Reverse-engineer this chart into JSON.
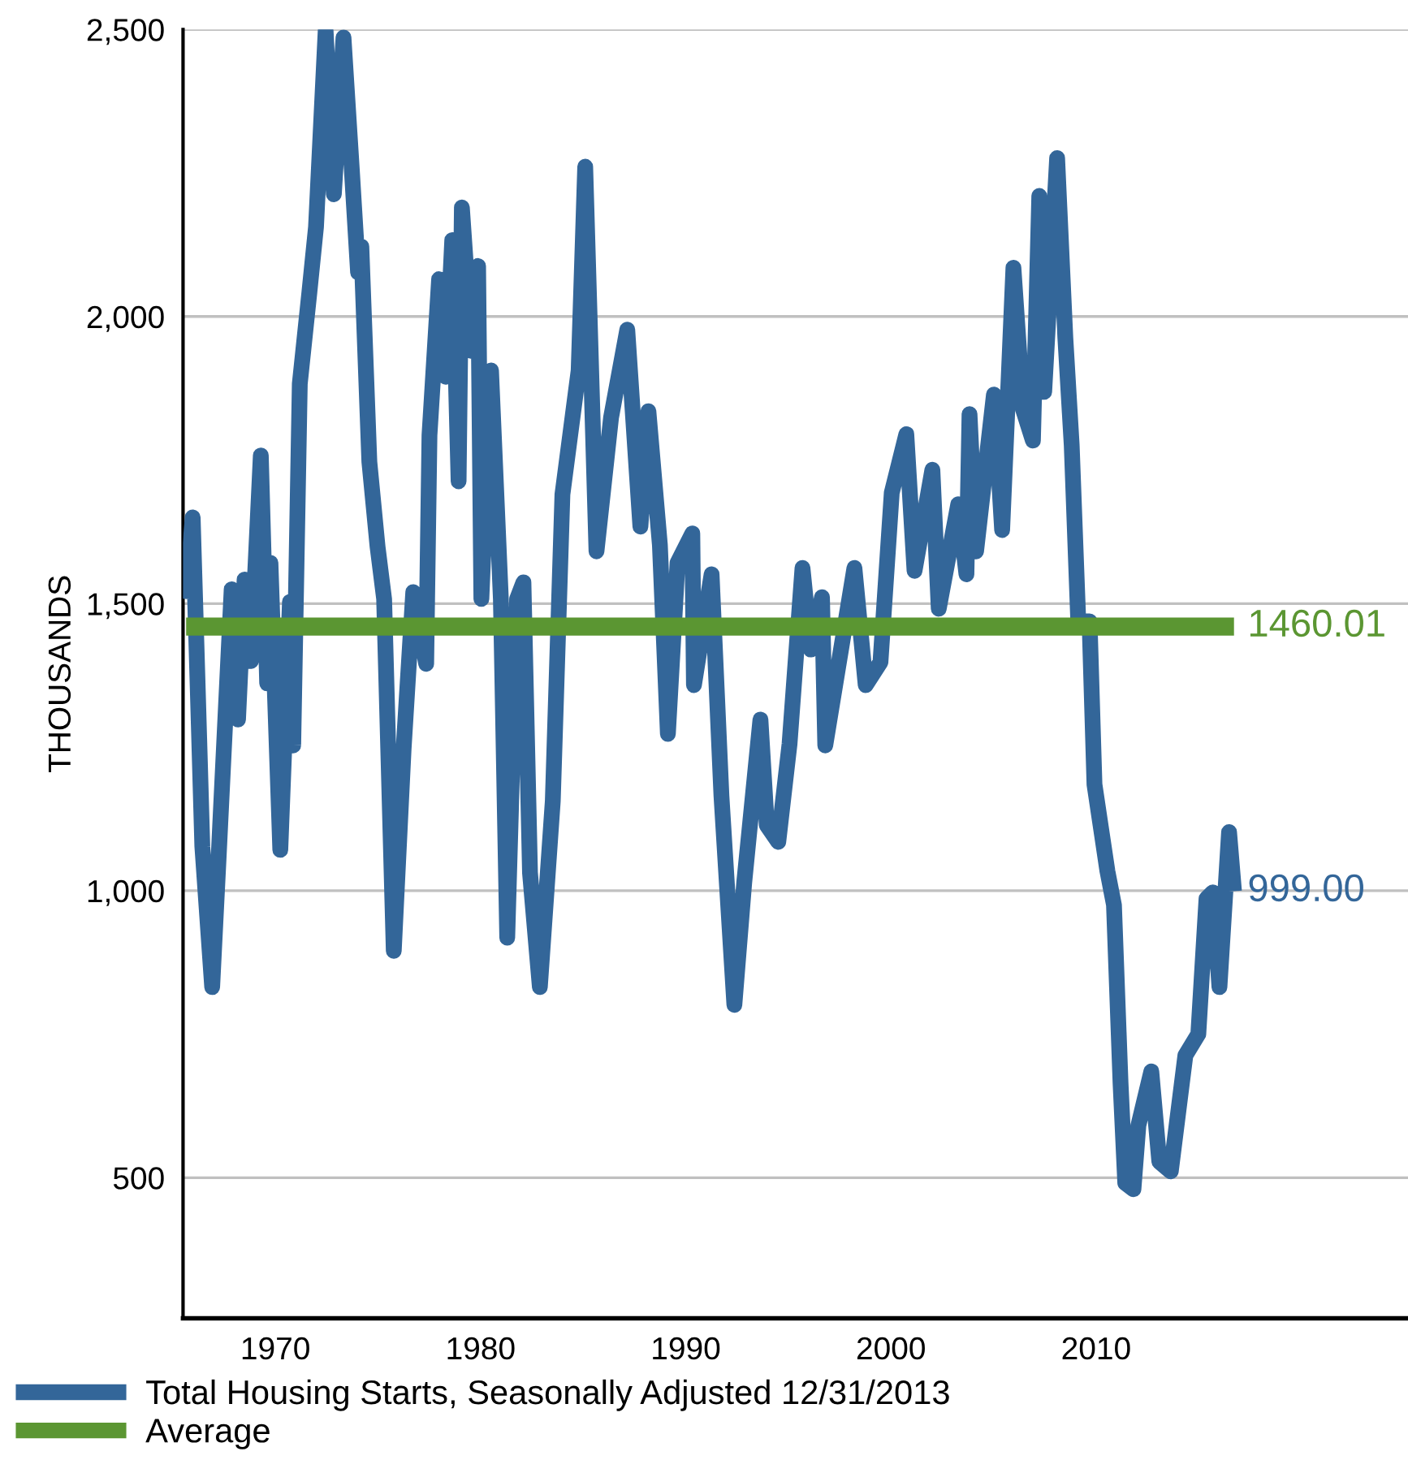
{
  "chart_data": {
    "type": "line",
    "ylabel": "THOUSANDS",
    "xlim": [
      1965.5,
      2025.2
    ],
    "xticks": [
      1970,
      1980,
      1990,
      2000,
      2010
    ],
    "ylim": [
      255,
      2500
    ],
    "yticks": [
      500,
      {
        "value": 1000,
        "label": "1,000"
      },
      {
        "value": 1500,
        "label": "1,500"
      },
      {
        "value": 2000,
        "label": "2,000"
      },
      {
        "value": 2500,
        "label": "2,500"
      }
    ],
    "grid": "y",
    "legend": "bottom left",
    "marker": "none",
    "line_style": "solid",
    "series": [
      {
        "name": "Total Housing Starts, Seasonally Adjusted 12/31/2013",
        "color": "#336699",
        "x": [
          1965.65,
          1965.97,
          1966.2,
          1966.44,
          1966.92,
          1967.23,
          1967.87,
          1968.18,
          1968.5,
          1968.81,
          1969.29,
          1969.6,
          1969.76,
          1970.24,
          1970.71,
          1970.87,
          1971.19,
          1971.66,
          1971.98,
          1972.45,
          1972.85,
          1973.32,
          1973.72,
          1974.03,
          1974.19,
          1974.58,
          1974.98,
          1975.3,
          1975.77,
          1976.25,
          1976.72,
          1977.35,
          1977.51,
          1977.98,
          1978.3,
          1978.62,
          1978.93,
          1979.09,
          1979.57,
          1979.88,
          1980.04,
          1980.51,
          1980.99,
          1981.3,
          1981.78,
          1982.09,
          1982.41,
          1982.89,
          1983.52,
          1983.99,
          1984.78,
          1985.1,
          1985.65,
          1986.36,
          1987.15,
          1987.79,
          1988.18,
          1988.74,
          1989.13,
          1989.6,
          1990.32,
          1990.4,
          1991.26,
          1991.74,
          1992.37,
          1992.85,
          1993.64,
          1993.95,
          1994.51,
          1995.06,
          1995.69,
          1996.09,
          1996.64,
          1996.8,
          1998.22,
          1998.77,
          1999.49,
          2000.04,
          2000.75,
          2001.15,
          2002.02,
          2002.33,
          2003.28,
          2003.68,
          2003.83,
          2004.15,
          2005.02,
          2005.42,
          2005.97,
          2006.44,
          2006.92,
          2007.23,
          2007.47,
          2008.1,
          2008.5,
          2008.81,
          2009.13,
          2009.68,
          2009.92,
          2010.55,
          2010.87,
          2011.19,
          2011.42,
          2011.82,
          2012.06,
          2012.69,
          2013.08,
          2013.64,
          2014.35,
          2014.98,
          2015.38,
          2015.69,
          2016.01,
          2016.48,
          2016.72
        ],
        "values": [
          1508,
          1650,
          1372,
          1077,
          832,
          1055,
          1525,
          1298,
          1542,
          1400,
          1758,
          1361,
          1571,
          1071,
          1503,
          1253,
          1883,
          2043,
          2156,
          2497,
          2213,
          2486,
          2259,
          2077,
          2122,
          1747,
          1599,
          1508,
          895,
          1247,
          1520,
          1395,
          1793,
          2065,
          1895,
          2133,
          1713,
          2190,
          1940,
          2088,
          1508,
          1906,
          1508,
          918,
          1508,
          1537,
          1031,
          832,
          1156,
          1690,
          1906,
          2261,
          1591,
          1824,
          1977,
          1634,
          1835,
          1602,
          1273,
          1571,
          1622,
          1358,
          1551,
          1165,
          801,
          1014,
          1298,
          1114,
          1085,
          1256,
          1562,
          1420,
          1511,
          1253,
          1562,
          1358,
          1398,
          1693,
          1795,
          1557,
          1733,
          1491,
          1673,
          1551,
          1830,
          1591,
          1864,
          1628,
          2085,
          1838,
          1784,
          2210,
          1869,
          2276,
          1963,
          1776,
          1469,
          1469,
          1185,
          1034,
          975,
          665,
          491,
          480,
          591,
          685,
          528,
          511,
          713,
          750,
          986,
          997,
          832,
          1102,
          999
        ],
        "value_labels": [
          null,
          null,
          null,
          null,
          null,
          null,
          null,
          null,
          null,
          null,
          null,
          null,
          null,
          null,
          null,
          null,
          null,
          null,
          null,
          null,
          null,
          null,
          null,
          null,
          null,
          null,
          null,
          null,
          null,
          null,
          null,
          null,
          null,
          null,
          null,
          null,
          null,
          null,
          null,
          null,
          null,
          null,
          null,
          null,
          null,
          null,
          null,
          null,
          null,
          null,
          null,
          null,
          null,
          null,
          null,
          null,
          null,
          null,
          null,
          null,
          null,
          null,
          null,
          null,
          null,
          null,
          null,
          null,
          null,
          null,
          null,
          null,
          null,
          null,
          null,
          null,
          null,
          null,
          null,
          null,
          null,
          null,
          null,
          null,
          null,
          null,
          null,
          null,
          null,
          null,
          null,
          null,
          null,
          null,
          null,
          null,
          null,
          null,
          null,
          null,
          null,
          null,
          null,
          null,
          null,
          null,
          null,
          null,
          null,
          null,
          null,
          null,
          null,
          null,
          "999.00"
        ]
      },
      {
        "name": "Average",
        "color": "#5b9632",
        "x": [
          1965.65,
          2016.72
        ],
        "values": [
          1460.01,
          1460.01
        ],
        "value_labels": [
          null,
          "1460.01"
        ]
      }
    ]
  }
}
